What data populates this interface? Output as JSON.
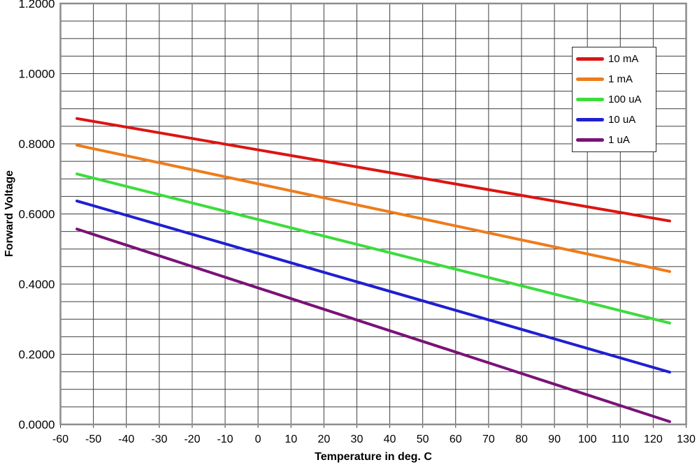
{
  "chart_data": {
    "type": "line",
    "title": "",
    "xlabel": "Temperature in deg. C",
    "ylabel": "Forward Voltage",
    "xlim": [
      -60,
      130
    ],
    "ylim": [
      0,
      1.2
    ],
    "x_tick_step": 10,
    "y_minor_gridline_step": 0.05,
    "grid": true,
    "legend_position": "top-right",
    "x_tick_labels": [
      "-60",
      "-50",
      "-40",
      "-30",
      "-20",
      "-10",
      "0",
      "10",
      "20",
      "30",
      "40",
      "50",
      "60",
      "70",
      "80",
      "90",
      "100",
      "110",
      "120",
      "130"
    ],
    "y_tick_values": [
      0,
      0.2,
      0.4,
      0.6,
      0.8,
      1.0,
      1.2
    ],
    "y_tick_labels": [
      "0.0000",
      "0.2000",
      "0.4000",
      "0.6000",
      "0.8000",
      "1.0000",
      "1.2000"
    ],
    "x": [
      -55,
      125
    ],
    "series": [
      {
        "name": "10 mA",
        "color": "#db1512",
        "values": [
          0.872,
          0.58
        ]
      },
      {
        "name": "1 mA",
        "color": "#ee7c1c",
        "values": [
          0.796,
          0.436
        ]
      },
      {
        "name": "100 uA",
        "color": "#3cdc3c",
        "values": [
          0.714,
          0.289
        ]
      },
      {
        "name": "10 uA",
        "color": "#1f1fd2",
        "values": [
          0.637,
          0.149
        ]
      },
      {
        "name": "1 uA",
        "color": "#7a1278",
        "values": [
          0.557,
          0.008
        ]
      }
    ]
  },
  "style": {
    "gridline_color": "#3f3f3f",
    "plot_border_color": "#8c8c8c",
    "legend_border_color": "#2a2a2a",
    "background_color": "#ffffff",
    "tick_label_color": "#000000"
  }
}
